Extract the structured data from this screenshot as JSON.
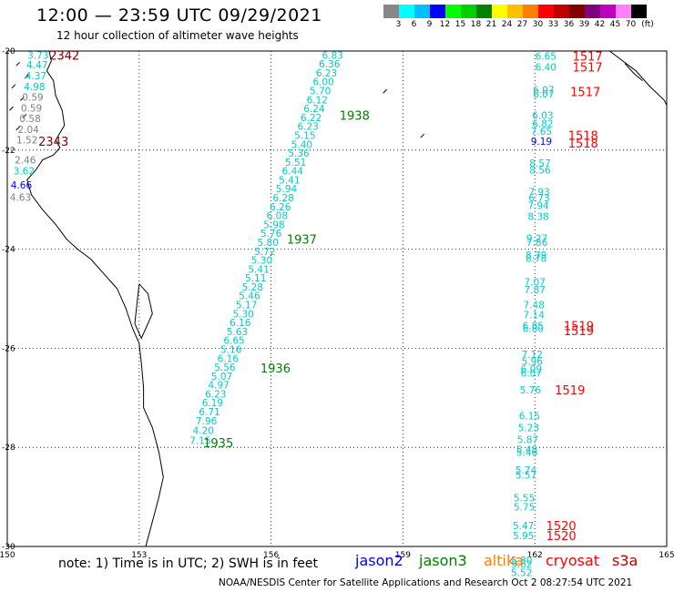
{
  "title": "12:00 — 23:59 UTC 09/29/2021",
  "subtitle": "12 hour collection of altimeter wave heights",
  "legend": {
    "unit": "(ft)",
    "colors": [
      "#888888",
      "#00ffff",
      "#00bfff",
      "#0000ff",
      "#00ff00",
      "#00d000",
      "#008000",
      "#ffff00",
      "#ffc000",
      "#ff8000",
      "#ff0000",
      "#c00000",
      "#800000",
      "#800080",
      "#c000c0",
      "#ff80ff",
      "#000000"
    ],
    "labels": [
      "3",
      "6",
      "9",
      "12",
      "15",
      "18",
      "21",
      "24",
      "27",
      "30",
      "33",
      "36",
      "39",
      "42",
      "45",
      "70"
    ]
  },
  "axes": {
    "lon_ticks": [
      "150",
      "153",
      "156",
      "159",
      "162",
      "165"
    ],
    "lat_ticks": [
      "-20",
      "-22",
      "-24",
      "-26",
      "-28",
      "-30"
    ]
  },
  "note": "note:  1) Time is in UTC;  2) SWH is in feet",
  "satellites": [
    {
      "name": "jason2",
      "color": "#0000ff"
    },
    {
      "name": "jason3",
      "color": "#008000"
    },
    {
      "name": "altika",
      "color": "#ff8000"
    },
    {
      "name": "cryosat",
      "color": "#ff0000"
    },
    {
      "name": "s3a",
      "color": "#c00000"
    }
  ],
  "credit": "NOAA/NESDIS Center for Satellite Applications and Research    Oct  2 08:27:54 UTC 2021",
  "tracks": {
    "left": {
      "color_cyan": "#00cccc",
      "color_gray": "#808080",
      "points": [
        {
          "lon": 150.7,
          "lat": -20.08,
          "v": "3.73",
          "c": "cyan"
        },
        {
          "lon": 150.68,
          "lat": -20.28,
          "v": "4.47",
          "c": "cyan"
        },
        {
          "lon": 150.65,
          "lat": -20.5,
          "v": "4.37",
          "c": "cyan"
        },
        {
          "lon": 150.62,
          "lat": -20.72,
          "v": "4.98",
          "c": "cyan"
        },
        {
          "lon": 150.58,
          "lat": -20.93,
          "v": "0.59",
          "c": "gray"
        },
        {
          "lon": 150.55,
          "lat": -21.15,
          "v": "0.59",
          "c": "gray"
        },
        {
          "lon": 150.52,
          "lat": -21.36,
          "v": "0.58",
          "c": "gray"
        },
        {
          "lon": 150.48,
          "lat": -21.58,
          "v": "2.04",
          "c": "gray"
        },
        {
          "lon": 150.45,
          "lat": -21.79,
          "v": "1.52",
          "c": "gray"
        },
        {
          "lon": 150.41,
          "lat": -22.2,
          "v": "2.46",
          "c": "gray"
        },
        {
          "lon": 150.38,
          "lat": -22.42,
          "v": "3.62",
          "c": "cyan"
        },
        {
          "lon": 150.32,
          "lat": -22.7,
          "v": "4.66",
          "c": "blue"
        },
        {
          "lon": 150.3,
          "lat": -22.95,
          "v": "4.63",
          "c": "gray"
        }
      ],
      "times": [
        {
          "lon": 151.3,
          "lat": -20.08,
          "t": "2342"
        },
        {
          "lon": 151.05,
          "lat": -21.82,
          "t": "2343"
        }
      ]
    },
    "middle": {
      "color": "#00cccc",
      "points": [
        {
          "lon": 157.4,
          "lat": -20.08,
          "v": "6.83"
        },
        {
          "lon": 157.33,
          "lat": -20.26,
          "v": "6.36"
        },
        {
          "lon": 157.26,
          "lat": -20.44,
          "v": "6.23"
        },
        {
          "lon": 157.19,
          "lat": -20.62,
          "v": "6.00"
        },
        {
          "lon": 157.12,
          "lat": -20.8,
          "v": "5.70"
        },
        {
          "lon": 157.05,
          "lat": -20.98,
          "v": "6.12"
        },
        {
          "lon": 156.98,
          "lat": -21.16,
          "v": "6.24"
        },
        {
          "lon": 156.91,
          "lat": -21.34,
          "v": "6.22"
        },
        {
          "lon": 156.84,
          "lat": -21.52,
          "v": "6.23"
        },
        {
          "lon": 156.77,
          "lat": -21.7,
          "v": "5.15"
        },
        {
          "lon": 156.7,
          "lat": -21.88,
          "v": "5.40"
        },
        {
          "lon": 156.63,
          "lat": -22.06,
          "v": "5.36"
        },
        {
          "lon": 156.56,
          "lat": -22.24,
          "v": "5.51"
        },
        {
          "lon": 156.49,
          "lat": -22.42,
          "v": "6.44"
        },
        {
          "lon": 156.42,
          "lat": -22.6,
          "v": "5.41"
        },
        {
          "lon": 156.35,
          "lat": -22.78,
          "v": "5.94"
        },
        {
          "lon": 156.28,
          "lat": -22.96,
          "v": "6.28"
        },
        {
          "lon": 156.21,
          "lat": -23.14,
          "v": "6.26"
        },
        {
          "lon": 156.14,
          "lat": -23.32,
          "v": "6.08"
        },
        {
          "lon": 156.07,
          "lat": -23.5,
          "v": "5.98"
        },
        {
          "lon": 156.0,
          "lat": -23.68,
          "v": "5.76"
        },
        {
          "lon": 155.93,
          "lat": -23.86,
          "v": "5.80"
        },
        {
          "lon": 155.86,
          "lat": -24.04,
          "v": "5.72"
        },
        {
          "lon": 155.79,
          "lat": -24.22,
          "v": "5.30"
        },
        {
          "lon": 155.72,
          "lat": -24.4,
          "v": "5.41"
        },
        {
          "lon": 155.65,
          "lat": -24.58,
          "v": "5.11"
        },
        {
          "lon": 155.58,
          "lat": -24.76,
          "v": "5.28"
        },
        {
          "lon": 155.51,
          "lat": -24.94,
          "v": "5.46"
        },
        {
          "lon": 155.44,
          "lat": -25.12,
          "v": "5.17"
        },
        {
          "lon": 155.37,
          "lat": -25.3,
          "v": "5.30"
        },
        {
          "lon": 155.3,
          "lat": -25.48,
          "v": "6.16"
        },
        {
          "lon": 155.23,
          "lat": -25.66,
          "v": "5.63"
        },
        {
          "lon": 155.16,
          "lat": -25.84,
          "v": "6.65"
        },
        {
          "lon": 155.09,
          "lat": -26.02,
          "v": "5.16"
        },
        {
          "lon": 155.02,
          "lat": -26.2,
          "v": "6.16"
        },
        {
          "lon": 154.95,
          "lat": -26.38,
          "v": "5.56"
        },
        {
          "lon": 154.88,
          "lat": -26.56,
          "v": "5.07"
        },
        {
          "lon": 154.81,
          "lat": -26.74,
          "v": "4.97"
        },
        {
          "lon": 154.74,
          "lat": -26.92,
          "v": "6.23"
        },
        {
          "lon": 154.67,
          "lat": -27.1,
          "v": "6.19"
        },
        {
          "lon": 154.6,
          "lat": -27.28,
          "v": "6.71"
        },
        {
          "lon": 154.53,
          "lat": -27.46,
          "v": "7.96"
        },
        {
          "lon": 154.46,
          "lat": -27.66,
          "v": "4.20"
        },
        {
          "lon": 154.39,
          "lat": -27.86,
          "v": "7.15"
        }
      ],
      "times": [
        {
          "lon": 157.9,
          "lat": -21.3,
          "t": "1938"
        },
        {
          "lon": 156.7,
          "lat": -23.8,
          "t": "1937"
        },
        {
          "lon": 156.1,
          "lat": -26.4,
          "t": "1936"
        },
        {
          "lon": 154.8,
          "lat": -27.9,
          "t": "1935"
        }
      ]
    },
    "right": {
      "color": "#00cccc",
      "points": [
        {
          "lon": 162.25,
          "lat": -20.1,
          "v": "6.65"
        },
        {
          "lon": 162.25,
          "lat": -20.32,
          "v": "6.40"
        },
        {
          "lon": 162.2,
          "lat": -20.78,
          "v": "6.07"
        },
        {
          "lon": 162.2,
          "lat": -20.86,
          "v": "6.07"
        },
        {
          "lon": 162.18,
          "lat": -21.3,
          "v": "6.03"
        },
        {
          "lon": 162.18,
          "lat": -21.46,
          "v": "6.82"
        },
        {
          "lon": 162.15,
          "lat": -21.62,
          "v": "7.65"
        },
        {
          "lon": 162.15,
          "lat": -21.82,
          "v": "9.19",
          "c": "blue"
        },
        {
          "lon": 162.12,
          "lat": -22.26,
          "v": "8.57"
        },
        {
          "lon": 162.12,
          "lat": -22.4,
          "v": "8.56"
        },
        {
          "lon": 162.1,
          "lat": -22.84,
          "v": "7.93"
        },
        {
          "lon": 162.1,
          "lat": -22.96,
          "v": "6.73"
        },
        {
          "lon": 162.08,
          "lat": -23.12,
          "v": "7.94"
        },
        {
          "lon": 162.08,
          "lat": -23.34,
          "v": "8.38"
        },
        {
          "lon": 162.05,
          "lat": -23.78,
          "v": "9.27"
        },
        {
          "lon": 162.05,
          "lat": -23.86,
          "v": "7.86"
        },
        {
          "lon": 162.03,
          "lat": -24.12,
          "v": "8.79"
        },
        {
          "lon": 162.03,
          "lat": -24.18,
          "v": "8.78"
        },
        {
          "lon": 162.0,
          "lat": -24.66,
          "v": "7.07"
        },
        {
          "lon": 162.0,
          "lat": -24.82,
          "v": "7.87"
        },
        {
          "lon": 161.98,
          "lat": -25.12,
          "v": "7.48"
        },
        {
          "lon": 161.98,
          "lat": -25.32,
          "v": "7.14"
        },
        {
          "lon": 161.96,
          "lat": -25.54,
          "v": "6.85"
        },
        {
          "lon": 161.96,
          "lat": -25.6,
          "v": "6.80"
        },
        {
          "lon": 161.94,
          "lat": -26.12,
          "v": "7.12"
        },
        {
          "lon": 161.94,
          "lat": -26.26,
          "v": "5.96"
        },
        {
          "lon": 161.92,
          "lat": -26.42,
          "v": "6.09"
        },
        {
          "lon": 161.92,
          "lat": -26.5,
          "v": "6.07"
        },
        {
          "lon": 161.9,
          "lat": -26.84,
          "v": "5.76"
        },
        {
          "lon": 161.88,
          "lat": -27.36,
          "v": "6.15"
        },
        {
          "lon": 161.86,
          "lat": -27.6,
          "v": "5.23"
        },
        {
          "lon": 161.84,
          "lat": -27.84,
          "v": "5.87"
        },
        {
          "lon": 161.82,
          "lat": -28.04,
          "v": "5.48"
        },
        {
          "lon": 161.82,
          "lat": -28.1,
          "v": "5.46"
        },
        {
          "lon": 161.8,
          "lat": -28.46,
          "v": "5.74"
        },
        {
          "lon": 161.8,
          "lat": -28.56,
          "v": "5.57"
        },
        {
          "lon": 161.76,
          "lat": -29.02,
          "v": "5.55"
        },
        {
          "lon": 161.76,
          "lat": -29.2,
          "v": "5.75"
        },
        {
          "lon": 161.74,
          "lat": -29.58,
          "v": "5.47"
        },
        {
          "lon": 161.74,
          "lat": -29.78,
          "v": "5.95"
        },
        {
          "lon": 161.7,
          "lat": -30.28,
          "v": "5.80"
        },
        {
          "lon": 161.7,
          "lat": -30.36,
          "v": "5.62"
        },
        {
          "lon": 161.7,
          "lat": -30.52,
          "v": "5.52"
        }
      ],
      "times": [
        {
          "lon": 163.2,
          "lat": -20.1,
          "t": "1517"
        },
        {
          "lon": 163.2,
          "lat": -20.32,
          "t": "1517"
        },
        {
          "lon": 163.15,
          "lat": -20.82,
          "t": "1517"
        },
        {
          "lon": 163.1,
          "lat": -21.7,
          "t": "1518"
        },
        {
          "lon": 163.1,
          "lat": -21.86,
          "t": "1518"
        },
        {
          "lon": 163.0,
          "lat": -25.54,
          "t": "1519"
        },
        {
          "lon": 163.0,
          "lat": -25.64,
          "t": "1519"
        },
        {
          "lon": 162.8,
          "lat": -26.84,
          "t": "1519"
        },
        {
          "lon": 162.6,
          "lat": -29.58,
          "t": "1520"
        },
        {
          "lon": 162.6,
          "lat": -29.78,
          "t": "1520"
        }
      ]
    }
  }
}
